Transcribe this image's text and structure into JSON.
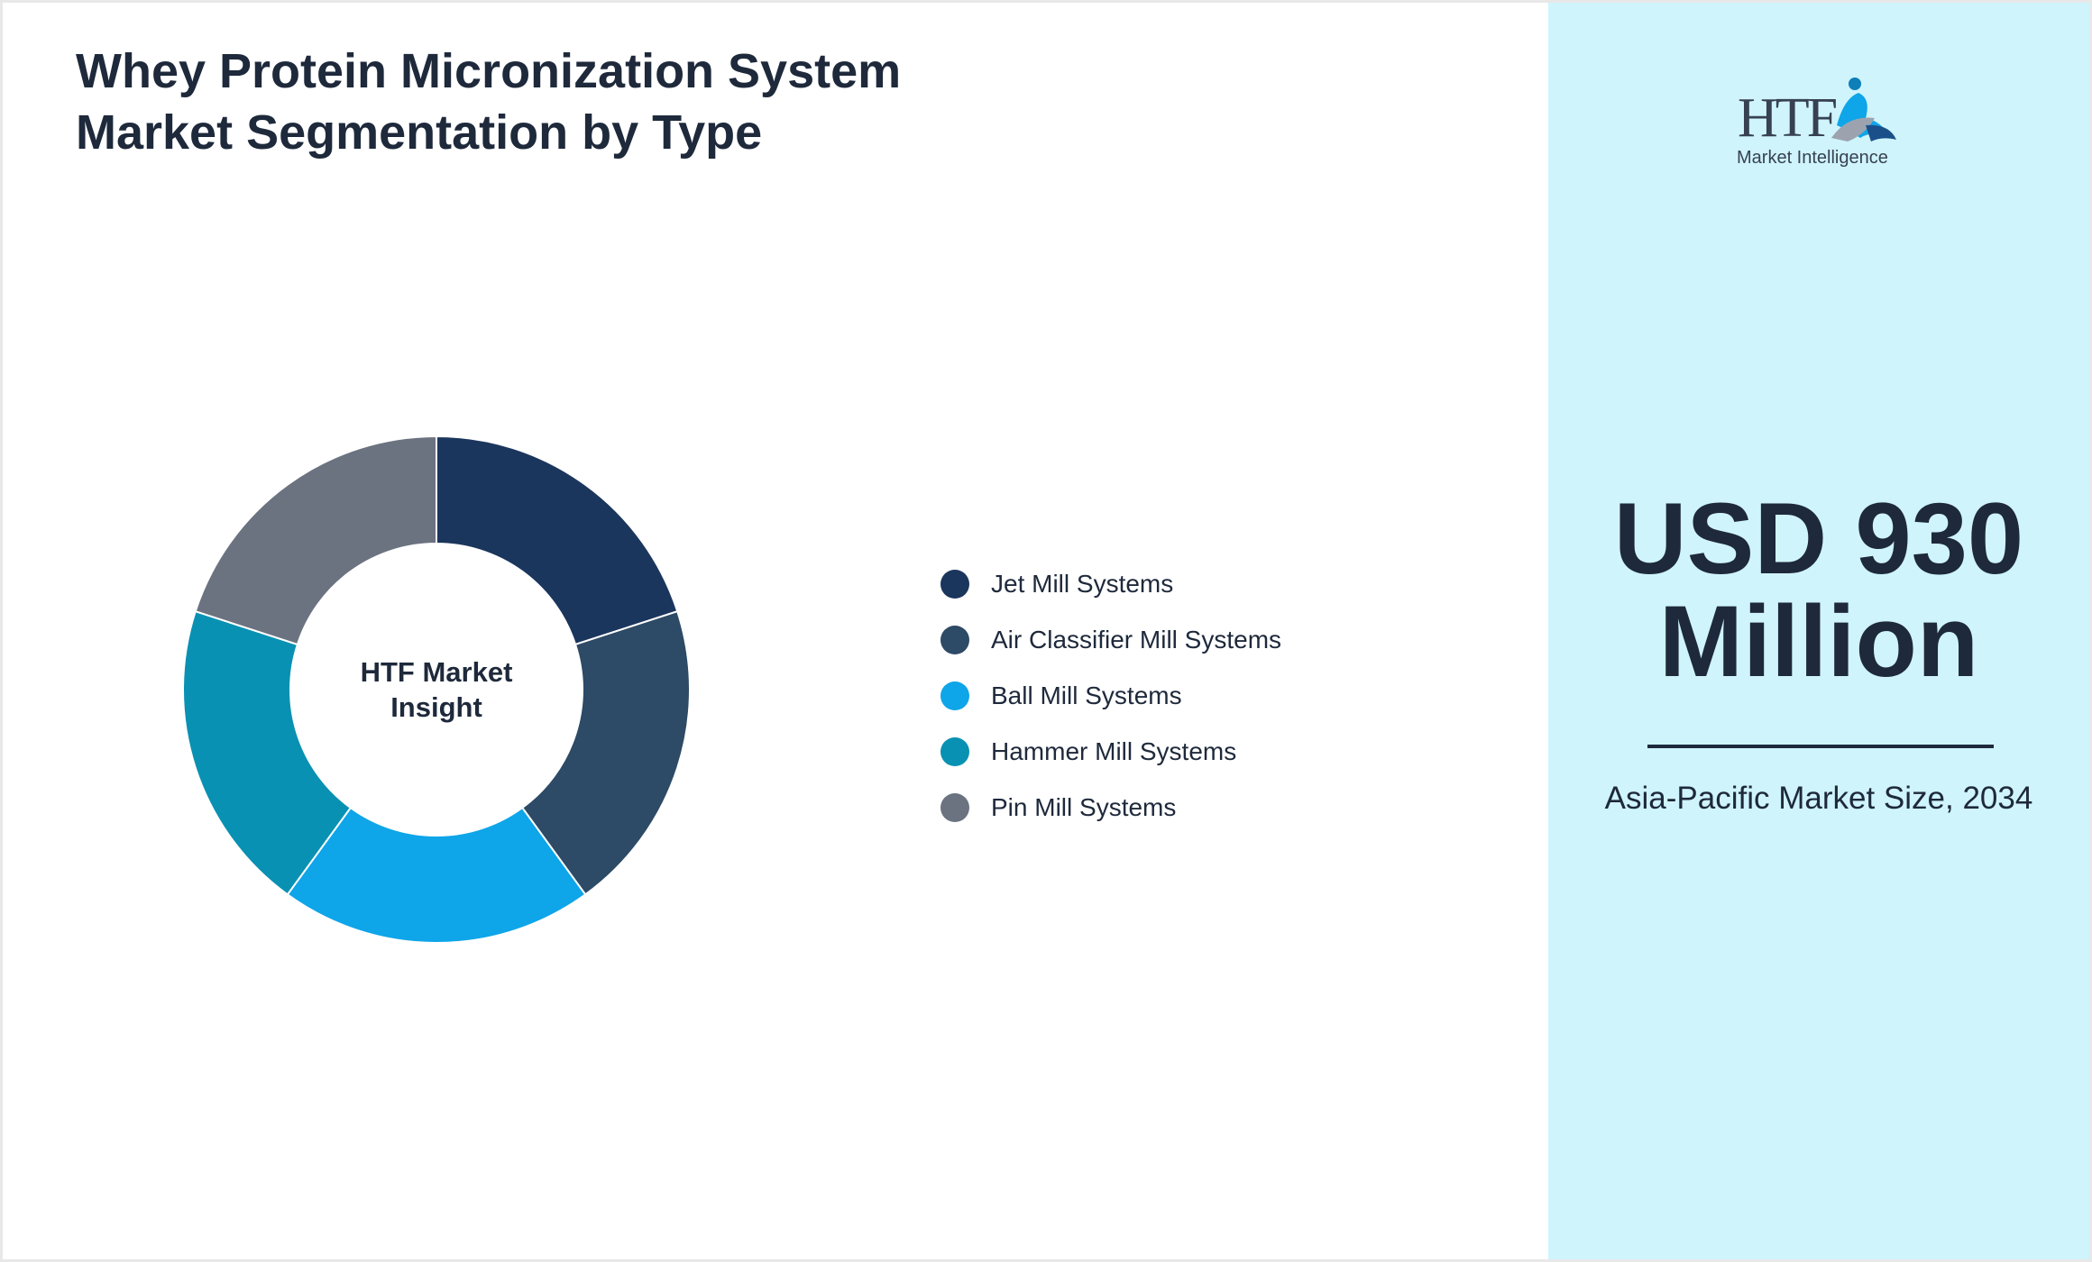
{
  "title": "Whey Protein Micronization System Market Segmentation by Type",
  "chart_data": {
    "type": "pie",
    "variant": "donut",
    "center_label": [
      "HTF Market",
      "Insight"
    ],
    "categories": [
      "Jet Mill Systems",
      "Air Classifier Mill Systems",
      "Ball Mill Systems",
      "Hammer Mill Systems",
      "Pin Mill Systems"
    ],
    "values": [
      20,
      20,
      20,
      20,
      20
    ],
    "colors": [
      "#1b365d",
      "#2d4a66",
      "#0ea5e9",
      "#0891b2",
      "#6b7280"
    ],
    "legend_position": "right"
  },
  "side_panel": {
    "value_line1": "USD 930",
    "value_line2": "Million",
    "caption": "Asia-Pacific Market Size, 2034",
    "logo_text": "HTF",
    "logo_subtext": "Market Intelligence"
  }
}
